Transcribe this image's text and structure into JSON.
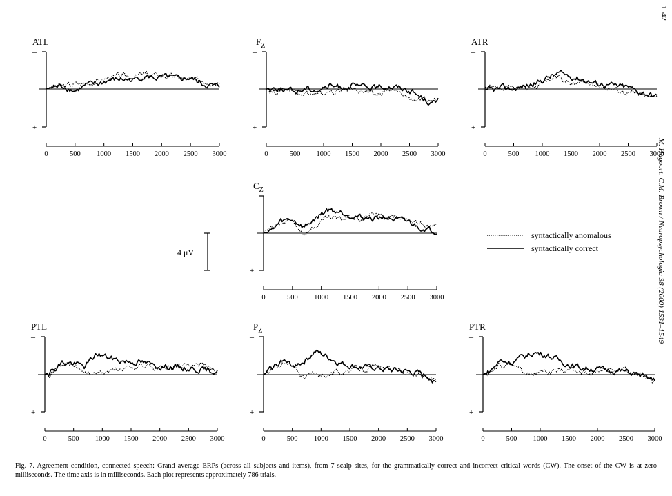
{
  "page": {
    "page_number": "1542",
    "running_head": "M. Hagoort, C.M. Brown / Neuropsychologia 38 (2000) 1531–1549",
    "caption": "Fig. 7. Agreement condition, connected speech: Grand average ERPs (across all subjects and items), from 7 scalp sites, for the grammatically correct and incorrect critical words (CW). The onset of the CW is at zero milliseconds. The time axis is in milliseconds. Each plot represents approximately 786 trials."
  },
  "scale_bar": {
    "label": "4 μV"
  },
  "legend": {
    "placement": "right-middle",
    "entries": [
      {
        "name": "syntactically anomalous",
        "style": "dotted"
      },
      {
        "name": "syntactically correct",
        "style": "solid"
      }
    ]
  },
  "colors": {
    "ink": "#000000",
    "background": "#ffffff"
  },
  "chart_data": [
    {
      "type": "line",
      "title": "ATL",
      "polarity": {
        "top": "–",
        "bottom": "+"
      },
      "x_ticks": [
        0,
        500,
        1000,
        1500,
        2000,
        2500,
        3000
      ],
      "xlim": [
        0,
        3000
      ],
      "ylim": [
        -3.8,
        3.8
      ],
      "series": [
        {
          "name": "syntactically anomalous",
          "style": "dotted",
          "x": [
            0,
            150,
            300,
            500,
            700,
            900,
            1100,
            1300,
            1500,
            1700,
            1900,
            2100,
            2300,
            2500,
            2700,
            2900,
            3000
          ],
          "y": [
            0,
            0.3,
            0.3,
            0.5,
            0.6,
            0.8,
            1.2,
            1.3,
            1.3,
            1.5,
            1.4,
            1.3,
            1.2,
            0.9,
            0.9,
            0.7,
            0.9
          ]
        },
        {
          "name": "syntactically correct",
          "style": "solid",
          "x": [
            0,
            150,
            300,
            500,
            700,
            900,
            1100,
            1300,
            1500,
            1700,
            1900,
            2100,
            2300,
            2500,
            2700,
            2900,
            3000
          ],
          "y": [
            0,
            0.2,
            0.3,
            -0.2,
            0.4,
            0.5,
            0.9,
            1.0,
            0.9,
            1.3,
            1.1,
            1.2,
            1.0,
            1.1,
            0.5,
            0.3,
            0.2
          ]
        }
      ]
    },
    {
      "type": "line",
      "title": "Fz",
      "polarity": {
        "top": "–",
        "bottom": "+"
      },
      "x_ticks": [
        0,
        500,
        1000,
        1500,
        2000,
        2500,
        3000
      ],
      "xlim": [
        0,
        3000
      ],
      "ylim": [
        -3.8,
        3.8
      ],
      "series": [
        {
          "name": "syntactically anomalous",
          "style": "dotted",
          "x": [
            0,
            150,
            300,
            500,
            700,
            900,
            1100,
            1300,
            1500,
            1700,
            1900,
            2100,
            2300,
            2500,
            2700,
            2900,
            3000
          ],
          "y": [
            0,
            -0.3,
            0.1,
            -0.1,
            -0.4,
            -0.7,
            -0.3,
            -0.2,
            0.0,
            -0.2,
            -0.7,
            -0.1,
            -0.4,
            -0.9,
            -1.3,
            -1.2,
            -1.0
          ]
        },
        {
          "name": "syntactically correct",
          "style": "solid",
          "x": [
            0,
            150,
            300,
            500,
            700,
            900,
            1100,
            1300,
            1500,
            1700,
            1900,
            2100,
            2300,
            2500,
            2700,
            2900,
            3000
          ],
          "y": [
            0,
            0.1,
            0.0,
            -0.3,
            0.1,
            -0.1,
            0.3,
            0.2,
            0.3,
            0.2,
            0.1,
            0.3,
            0.2,
            -0.1,
            -0.8,
            -1.5,
            -1.2
          ]
        }
      ]
    },
    {
      "type": "line",
      "title": "ATR",
      "polarity": {
        "top": "–",
        "bottom": "+"
      },
      "x_ticks": [
        0,
        500,
        1000,
        1500,
        2000,
        2500,
        3000
      ],
      "xlim": [
        0,
        3000
      ],
      "ylim": [
        -3.8,
        3.8
      ],
      "series": [
        {
          "name": "syntactically anomalous",
          "style": "dotted",
          "x": [
            0,
            150,
            300,
            500,
            700,
            900,
            1100,
            1300,
            1500,
            1700,
            1900,
            2100,
            2300,
            2500,
            2700,
            2900,
            3000
          ],
          "y": [
            0.2,
            0.0,
            -0.1,
            0.1,
            0.0,
            0.3,
            1.0,
            1.2,
            0.5,
            0.6,
            0.5,
            0.2,
            -0.1,
            -0.3,
            -0.6,
            -0.8,
            -0.7
          ]
        },
        {
          "name": "syntactically correct",
          "style": "solid",
          "x": [
            0,
            150,
            300,
            500,
            700,
            900,
            1100,
            1300,
            1500,
            1700,
            1900,
            2100,
            2300,
            2500,
            2700,
            2900,
            3000
          ],
          "y": [
            0,
            -0.1,
            0.1,
            0.0,
            0.3,
            0.6,
            1.2,
            1.6,
            1.3,
            1.0,
            0.6,
            0.5,
            0.3,
            0.2,
            -0.3,
            -0.6,
            -0.8
          ]
        }
      ]
    },
    {
      "type": "line",
      "title": "Cz",
      "polarity": {
        "top": "–",
        "bottom": "+"
      },
      "x_ticks": [
        0,
        500,
        1000,
        1500,
        2000,
        2500,
        3000
      ],
      "xlim": [
        0,
        3000
      ],
      "ylim": [
        -3.8,
        3.8
      ],
      "series": [
        {
          "name": "syntactically anomalous",
          "style": "dotted",
          "x": [
            0,
            150,
            300,
            500,
            700,
            900,
            1100,
            1300,
            1500,
            1700,
            1900,
            2100,
            2300,
            2500,
            2700,
            2900,
            3000
          ],
          "y": [
            0.2,
            0.5,
            1.0,
            1.2,
            0.0,
            0.7,
            1.5,
            1.4,
            1.7,
            1.4,
            2.0,
            1.6,
            1.8,
            1.1,
            1.2,
            0.6,
            0.6
          ]
        },
        {
          "name": "syntactically correct",
          "style": "solid",
          "x": [
            0,
            150,
            300,
            500,
            700,
            900,
            1100,
            1300,
            1500,
            1700,
            1900,
            2100,
            2300,
            2500,
            2700,
            2900,
            3000
          ],
          "y": [
            0,
            0.3,
            1.2,
            1.4,
            0.6,
            1.5,
            2.4,
            2.2,
            1.9,
            1.6,
            1.5,
            1.7,
            1.3,
            1.2,
            0.6,
            0.3,
            0.2
          ]
        }
      ]
    },
    {
      "type": "line",
      "title": "PTL",
      "polarity": {
        "top": "–",
        "bottom": "+"
      },
      "x_ticks": [
        0,
        500,
        1000,
        1500,
        2000,
        2500,
        3000
      ],
      "xlim": [
        0,
        3000
      ],
      "ylim": [
        -3.8,
        3.8
      ],
      "series": [
        {
          "name": "syntactically anomalous",
          "style": "dotted",
          "x": [
            0,
            150,
            300,
            500,
            700,
            900,
            1100,
            1300,
            1500,
            1700,
            1900,
            2100,
            2300,
            2500,
            2700,
            2900,
            3000
          ],
          "y": [
            0,
            0.4,
            1.1,
            0.9,
            0.2,
            0.1,
            0.3,
            0.5,
            0.8,
            0.9,
            0.8,
            0.7,
            0.8,
            0.9,
            1.0,
            0.6,
            0.4
          ]
        },
        {
          "name": "syntactically correct",
          "style": "solid",
          "x": [
            0,
            150,
            300,
            500,
            700,
            900,
            1100,
            1300,
            1500,
            1700,
            1900,
            2100,
            2300,
            2500,
            2700,
            2900,
            3000
          ],
          "y": [
            0,
            0.5,
            1.2,
            1.1,
            0.8,
            2.1,
            1.7,
            1.4,
            1.3,
            1.2,
            0.9,
            0.8,
            0.7,
            0.6,
            0.5,
            0.4,
            0.3
          ]
        }
      ]
    },
    {
      "type": "line",
      "title": "Pz",
      "polarity": {
        "top": "–",
        "bottom": "+"
      },
      "x_ticks": [
        0,
        500,
        1000,
        1500,
        2000,
        2500,
        3000
      ],
      "xlim": [
        0,
        3000
      ],
      "ylim": [
        -3.8,
        3.8
      ],
      "series": [
        {
          "name": "syntactically anomalous",
          "style": "dotted",
          "x": [
            0,
            150,
            300,
            500,
            700,
            900,
            1100,
            1300,
            1500,
            1700,
            1900,
            2100,
            2300,
            2500,
            2700,
            2900,
            3000
          ],
          "y": [
            0,
            0.4,
            1.2,
            0.8,
            -0.2,
            0.1,
            0.0,
            0.2,
            0.5,
            0.6,
            0.7,
            0.6,
            0.4,
            0.2,
            0.0,
            -0.5,
            -0.4
          ]
        },
        {
          "name": "syntactically correct",
          "style": "solid",
          "x": [
            0,
            150,
            300,
            500,
            700,
            900,
            1100,
            1300,
            1500,
            1700,
            1900,
            2100,
            2300,
            2500,
            2700,
            2900,
            3000
          ],
          "y": [
            0,
            0.6,
            1.4,
            0.9,
            1.3,
            2.3,
            1.8,
            1.2,
            0.9,
            0.7,
            0.7,
            0.5,
            0.4,
            0.3,
            0.1,
            -0.3,
            -0.8
          ]
        }
      ]
    },
    {
      "type": "line",
      "title": "PTR",
      "polarity": {
        "top": "–",
        "bottom": "+"
      },
      "x_ticks": [
        0,
        500,
        1000,
        1500,
        2000,
        2500,
        3000
      ],
      "xlim": [
        0,
        3000
      ],
      "ylim": [
        -3.8,
        3.8
      ],
      "series": [
        {
          "name": "syntactically anomalous",
          "style": "dotted",
          "x": [
            0,
            150,
            300,
            500,
            700,
            900,
            1100,
            1300,
            1500,
            1700,
            1900,
            2100,
            2300,
            2500,
            2700,
            2900,
            3000
          ],
          "y": [
            0,
            0.3,
            1.0,
            1.1,
            0.3,
            0.1,
            0.2,
            0.3,
            0.5,
            0.3,
            0.1,
            0.4,
            0.5,
            0.4,
            0.0,
            -0.5,
            -0.6
          ]
        },
        {
          "name": "syntactically correct",
          "style": "solid",
          "x": [
            0,
            150,
            300,
            500,
            700,
            900,
            1100,
            1300,
            1500,
            1700,
            1900,
            2100,
            2300,
            2500,
            2700,
            2900,
            3000
          ],
          "y": [
            0,
            0.5,
            1.4,
            1.2,
            1.8,
            2.2,
            2.0,
            1.5,
            1.0,
            0.7,
            0.6,
            0.5,
            0.4,
            0.3,
            0.0,
            -0.4,
            -0.6
          ]
        }
      ]
    }
  ]
}
